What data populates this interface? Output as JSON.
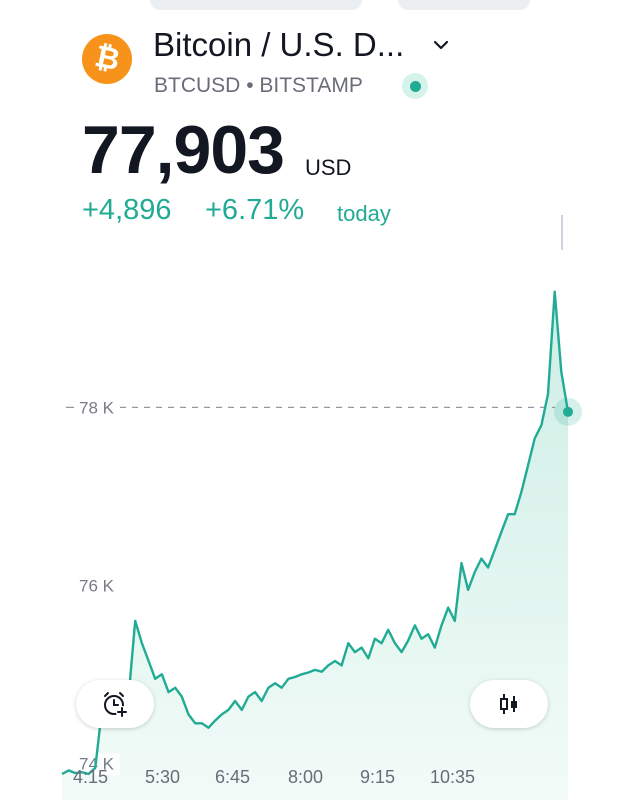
{
  "header": {
    "symbol_name": "Bitcoin / U.S. D...",
    "ticker": "BTCUSD",
    "separator": "•",
    "exchange": "BITSTAMP",
    "logo_icon": "bitcoin-logo",
    "logo_glyph": "₿",
    "dropdown_icon": "chevron-down-icon",
    "status_icon": "market-open-dot-icon"
  },
  "quote": {
    "price": "77,903",
    "currency": "USD",
    "change_abs": "+4,896",
    "change_pct": "+6.71%",
    "change_label": "today"
  },
  "colors": {
    "accent": "#22ab94",
    "logo": "#f7931a",
    "text": "#131722",
    "muted": "#6a6d78",
    "area_fill": "#e3f5f0"
  },
  "buttons": {
    "alert_icon": "add-alarm-icon",
    "chart_type_icon": "candlestick-icon"
  },
  "chart_data": {
    "type": "area",
    "ylim": [
      73700,
      79600
    ],
    "yticks": [
      {
        "value": 74000,
        "label": "74 K"
      },
      {
        "value": 76000,
        "label": "76 K"
      },
      {
        "value": 78000,
        "label": "78 K"
      }
    ],
    "xticks": [
      "4:15",
      "5:30",
      "6:45",
      "8:00",
      "9:15",
      "10:35"
    ],
    "reference_line": 78000,
    "series": [
      {
        "values": [
          73880,
          73920,
          73890,
          73900,
          73880,
          73950,
          74600,
          74750,
          74700,
          74820,
          74750,
          75600,
          75350,
          75150,
          74950,
          75000,
          74800,
          74850,
          74750,
          74550,
          74450,
          74450,
          74400,
          74480,
          74550,
          74600,
          74700,
          74600,
          74750,
          74800,
          74700,
          74850,
          74900,
          74850,
          74950,
          74970,
          75000,
          75020,
          75050,
          75030,
          75100,
          75150,
          75100,
          75350,
          75250,
          75300,
          75180,
          75400,
          75350,
          75500,
          75350,
          75250,
          75380,
          75550,
          75400,
          75450,
          75300,
          75550,
          75750,
          75600,
          76250,
          75950,
          76150,
          76300,
          76200,
          76400,
          76600,
          76800,
          76800,
          77050,
          77350,
          77650,
          77800,
          78150,
          79300,
          78400,
          77950
        ]
      }
    ]
  }
}
